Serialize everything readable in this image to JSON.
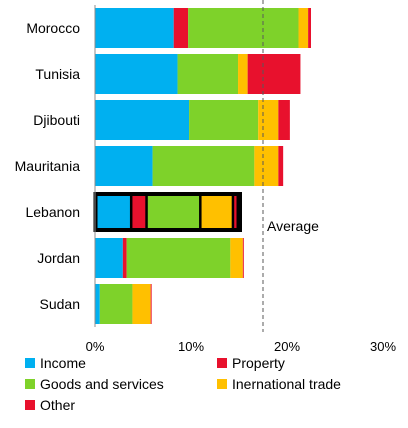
{
  "chart_data": {
    "type": "bar",
    "orientation": "horizontal",
    "stacked": true,
    "categories": [
      "Morocco",
      "Tunisia",
      "Djibouti",
      "Mauritania",
      "Lebanon",
      "Jordan",
      "Sudan"
    ],
    "series": [
      {
        "name": "Income",
        "color": "#00B0F0",
        "values": [
          8.2,
          8.6,
          9.8,
          6.0,
          3.9,
          2.9,
          0.5
        ]
      },
      {
        "name": "Property",
        "color": "#E8112D",
        "values": [
          1.5,
          0.0,
          0.0,
          0.0,
          1.6,
          0.4,
          0.0
        ]
      },
      {
        "name": "Goods and services",
        "color": "#7ED22A",
        "values": [
          11.5,
          6.3,
          7.2,
          10.6,
          5.6,
          10.8,
          3.4
        ]
      },
      {
        "name": "Inernational trade",
        "color": "#FFC000",
        "values": [
          1.0,
          1.0,
          2.1,
          2.5,
          3.4,
          1.3,
          1.9
        ]
      },
      {
        "name": "Other",
        "color": "#E8112D",
        "values": [
          0.3,
          5.5,
          1.2,
          0.5,
          0.5,
          0.1,
          0.1
        ]
      }
    ],
    "highlight": "Lebanon",
    "average": {
      "label": "Average",
      "value": 17.5
    },
    "xlim": [
      0,
      30
    ],
    "xticks": [
      0,
      10,
      20,
      30
    ],
    "xtick_labels": [
      "0%",
      "10%",
      "20%",
      "30%"
    ],
    "grid": false,
    "legend_position": "bottom"
  }
}
